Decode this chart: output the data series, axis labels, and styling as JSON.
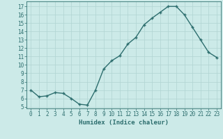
{
  "x": [
    0,
    1,
    2,
    3,
    4,
    5,
    6,
    7,
    8,
    9,
    10,
    11,
    12,
    13,
    14,
    15,
    16,
    17,
    18,
    19,
    20,
    21,
    22,
    23
  ],
  "y": [
    7.0,
    6.2,
    6.3,
    6.7,
    6.6,
    6.0,
    5.3,
    5.2,
    7.0,
    9.5,
    10.5,
    11.1,
    12.5,
    13.3,
    14.8,
    15.6,
    16.3,
    17.0,
    17.0,
    16.0,
    14.5,
    13.0,
    11.5,
    10.9
  ],
  "line_color": "#2d6e6e",
  "marker": "+",
  "marker_size": 3,
  "bg_color": "#cceae8",
  "grid_color": "#b0d4d2",
  "xlabel": "Humidex (Indice chaleur)",
  "ylabel_ticks": [
    5,
    6,
    7,
    8,
    9,
    10,
    11,
    12,
    13,
    14,
    15,
    16,
    17
  ],
  "xlabel_ticks": [
    0,
    1,
    2,
    3,
    4,
    5,
    6,
    7,
    8,
    9,
    10,
    11,
    12,
    13,
    14,
    15,
    16,
    17,
    18,
    19,
    20,
    21,
    22,
    23
  ],
  "ylim": [
    4.8,
    17.6
  ],
  "xlim": [
    -0.5,
    23.5
  ],
  "tick_fontsize": 5.5,
  "xlabel_fontsize": 6.5,
  "line_width": 1.0,
  "tick_color": "#2d6e6e",
  "label_color": "#2d6e6e",
  "spine_color": "#2d6e6e"
}
